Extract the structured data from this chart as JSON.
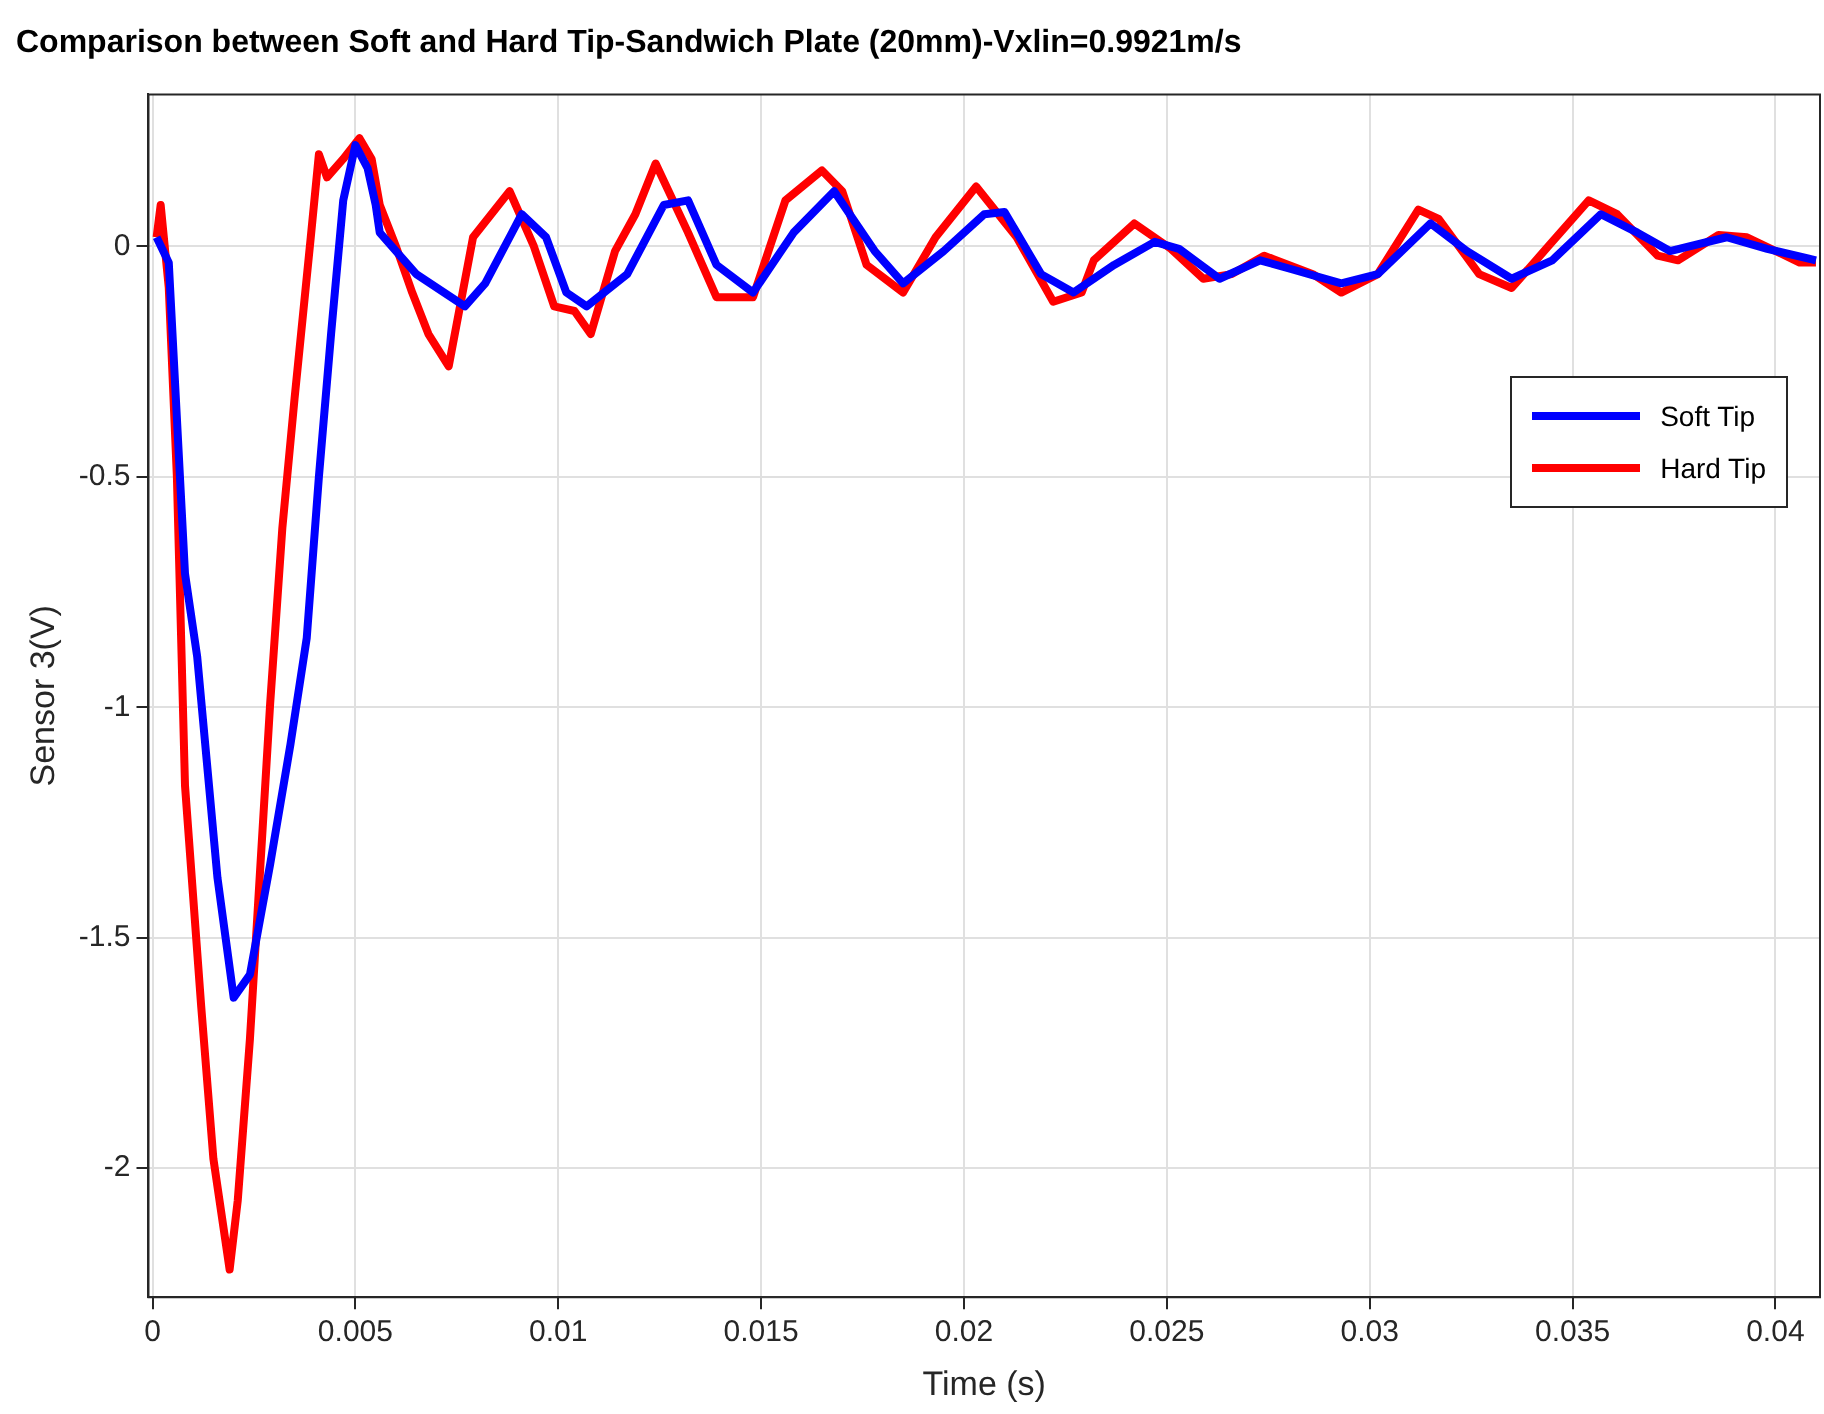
{
  "chart_data": {
    "type": "line",
    "title": "Comparison between Soft and Hard Tip-Sandwich Plate (20mm)-Vxlin=0.9921m/s",
    "xlabel": "Time (s)",
    "ylabel": "Sensor 3(V)",
    "xlim": [
      -0.0001,
      0.0411
    ],
    "ylim": [
      -2.28,
      0.33
    ],
    "xticks": [
      0,
      0.005,
      0.01,
      0.015,
      0.02,
      0.025,
      0.03,
      0.035,
      0.04
    ],
    "yticks": [
      -2,
      -1.5,
      -1,
      -0.5,
      0
    ],
    "grid": true,
    "legend": "right",
    "series": [
      {
        "name": "Soft Tip",
        "color": "#0000ff",
        "x": [
          0.0001,
          0.0004,
          0.0008,
          0.0011,
          0.0016,
          0.002,
          0.0024,
          0.0029,
          0.0034,
          0.0038,
          0.0041,
          0.0044,
          0.0047,
          0.005,
          0.0053,
          0.0055,
          0.0056,
          0.0065,
          0.0077,
          0.0082,
          0.0091,
          0.0097,
          0.0102,
          0.0107,
          0.0117,
          0.0126,
          0.0132,
          0.0139,
          0.0148,
          0.0158,
          0.0168,
          0.0178,
          0.0185,
          0.0195,
          0.0205,
          0.021,
          0.0219,
          0.0227,
          0.0237,
          0.0247,
          0.0253,
          0.0263,
          0.0273,
          0.0281,
          0.0293,
          0.0302,
          0.0315,
          0.0324,
          0.0335,
          0.0345,
          0.0357,
          0.0366,
          0.0374,
          0.0388,
          0.0398,
          0.041
        ],
        "values": [
          0.02,
          -0.035,
          -0.71,
          -0.89,
          -1.37,
          -1.63,
          -1.58,
          -1.34,
          -1.08,
          -0.85,
          -0.5,
          -0.19,
          0.1,
          0.22,
          0.17,
          0.09,
          0.03,
          -0.06,
          -0.13,
          -0.08,
          0.07,
          0.02,
          -0.1,
          -0.13,
          -0.06,
          0.09,
          0.1,
          -0.04,
          -0.1,
          0.03,
          0.12,
          -0.01,
          -0.08,
          -0.01,
          0.07,
          0.075,
          -0.06,
          -0.1,
          -0.04,
          0.01,
          -0.005,
          -0.07,
          -0.03,
          -0.05,
          -0.08,
          -0.06,
          0.05,
          -0.01,
          -0.07,
          -0.03,
          0.07,
          0.03,
          -0.01,
          0.02,
          -0.005,
          -0.03
        ]
      },
      {
        "name": "Hard Tip",
        "color": "#ff0000",
        "x": [
          0.0001,
          0.0002,
          0.0004,
          0.0006,
          0.0008,
          0.0012,
          0.0015,
          0.0019,
          0.0021,
          0.0024,
          0.0029,
          0.0032,
          0.0035,
          0.0039,
          0.0041,
          0.0043,
          0.0047,
          0.0051,
          0.0054,
          0.0056,
          0.006,
          0.0064,
          0.0068,
          0.0073,
          0.0076,
          0.0079,
          0.0088,
          0.0094,
          0.0099,
          0.0104,
          0.0108,
          0.0114,
          0.0119,
          0.0124,
          0.0132,
          0.0139,
          0.0148,
          0.0156,
          0.0165,
          0.017,
          0.0176,
          0.0185,
          0.0193,
          0.0203,
          0.0213,
          0.0222,
          0.0229,
          0.0232,
          0.0242,
          0.0251,
          0.0259,
          0.0266,
          0.0274,
          0.0286,
          0.0293,
          0.0302,
          0.0312,
          0.0317,
          0.0327,
          0.0335,
          0.0344,
          0.0354,
          0.0361,
          0.0371,
          0.0376,
          0.0386,
          0.0393,
          0.0406,
          0.041
        ],
        "values": [
          0.02,
          0.09,
          -0.09,
          -0.5,
          -1.17,
          -1.65,
          -1.98,
          -2.22,
          -2.07,
          -1.72,
          -0.99,
          -0.61,
          -0.33,
          0.02,
          0.2,
          0.15,
          0.19,
          0.235,
          0.19,
          0.09,
          0,
          -0.1,
          -0.19,
          -0.26,
          -0.12,
          0.02,
          0.12,
          0,
          -0.13,
          -0.14,
          -0.19,
          -0.01,
          0.07,
          0.18,
          0.03,
          -0.11,
          -0.11,
          0.1,
          0.165,
          0.12,
          -0.04,
          -0.1,
          0.02,
          0.13,
          0.02,
          -0.12,
          -0.1,
          -0.03,
          0.05,
          -0.005,
          -0.07,
          -0.06,
          -0.02,
          -0.06,
          -0.1,
          -0.06,
          0.08,
          0.06,
          -0.06,
          -0.09,
          0,
          0.1,
          0.07,
          -0.02,
          -0.03,
          0.025,
          0.02,
          -0.035,
          -0.035
        ]
      }
    ]
  }
}
